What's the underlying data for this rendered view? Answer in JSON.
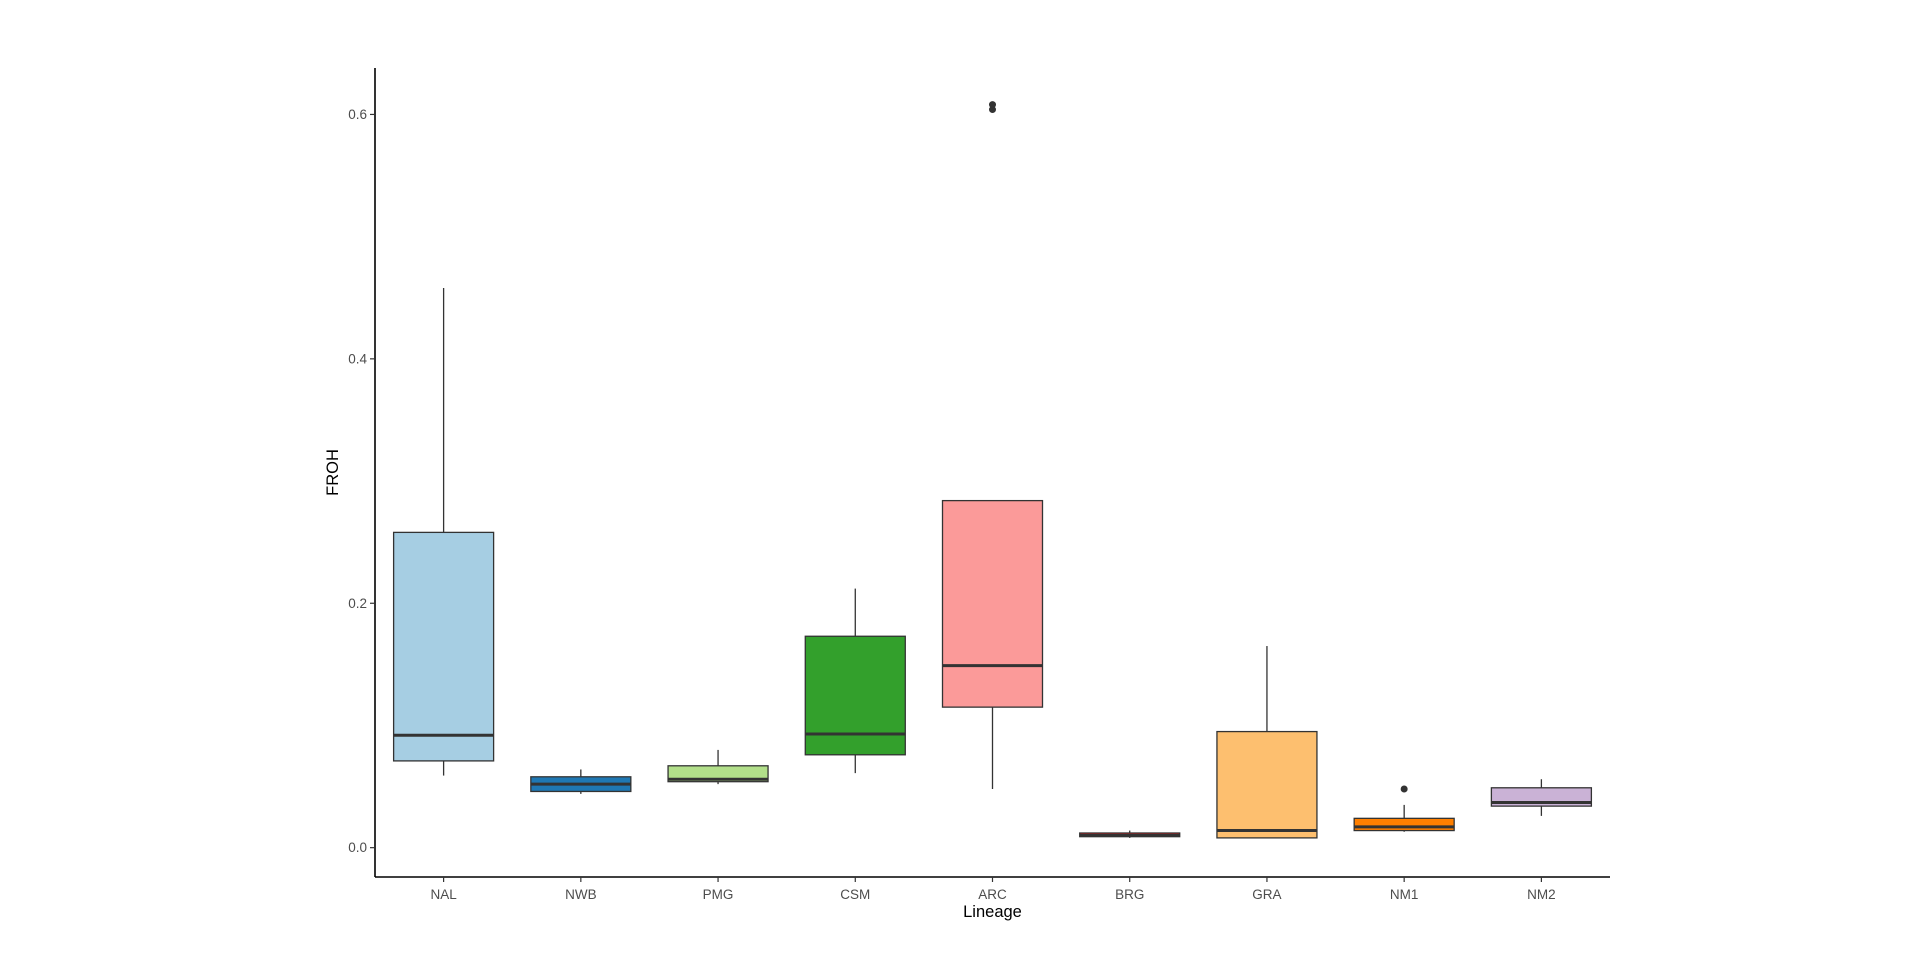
{
  "chart_data": {
    "type": "boxplot",
    "title": "",
    "xlabel": "Lineage",
    "ylabel": "FROH",
    "ylim": [
      -0.024,
      0.638
    ],
    "yticks": [
      0.0,
      0.2,
      0.4,
      0.6
    ],
    "ytick_labels": [
      "0.0",
      "0.2",
      "0.4",
      "0.6"
    ],
    "grid": false,
    "legend": "none",
    "categories": [
      "NAL",
      "NWB",
      "PMG",
      "CSM",
      "ARC",
      "BRG",
      "GRA",
      "NM1",
      "NM2"
    ],
    "boxes": [
      {
        "category": "NAL",
        "whisker_low": 0.059,
        "q1": 0.071,
        "median": 0.092,
        "q3": 0.258,
        "whisker_high": 0.458,
        "outliers": [],
        "color": "#a6cee3"
      },
      {
        "category": "NWB",
        "whisker_low": 0.044,
        "q1": 0.046,
        "median": 0.052,
        "q3": 0.058,
        "whisker_high": 0.064,
        "outliers": [],
        "color": "#1f78b4"
      },
      {
        "category": "PMG",
        "whisker_low": 0.052,
        "q1": 0.054,
        "median": 0.056,
        "q3": 0.067,
        "whisker_high": 0.08,
        "outliers": [],
        "color": "#b2df8a"
      },
      {
        "category": "CSM",
        "whisker_low": 0.061,
        "q1": 0.076,
        "median": 0.093,
        "q3": 0.173,
        "whisker_high": 0.212,
        "outliers": [],
        "color": "#33a02c"
      },
      {
        "category": "ARC",
        "whisker_low": 0.048,
        "q1": 0.115,
        "median": 0.149,
        "q3": 0.284,
        "whisker_high": 0.284,
        "outliers": [
          0.604,
          0.608
        ],
        "color": "#fb9a99"
      },
      {
        "category": "BRG",
        "whisker_low": 0.008,
        "q1": 0.009,
        "median": 0.01,
        "q3": 0.012,
        "whisker_high": 0.014,
        "outliers": [],
        "color": "#e31a1c"
      },
      {
        "category": "GRA",
        "whisker_low": 0.008,
        "q1": 0.008,
        "median": 0.014,
        "q3": 0.095,
        "whisker_high": 0.165,
        "outliers": [],
        "color": "#fdbf6f"
      },
      {
        "category": "NM1",
        "whisker_low": 0.013,
        "q1": 0.014,
        "median": 0.017,
        "q3": 0.024,
        "whisker_high": 0.035,
        "outliers": [
          0.048
        ],
        "color": "#ff7f00"
      },
      {
        "category": "NM2",
        "whisker_low": 0.026,
        "q1": 0.034,
        "median": 0.037,
        "q3": 0.049,
        "whisker_high": 0.056,
        "outliers": [],
        "color": "#cab2d6"
      }
    ]
  }
}
